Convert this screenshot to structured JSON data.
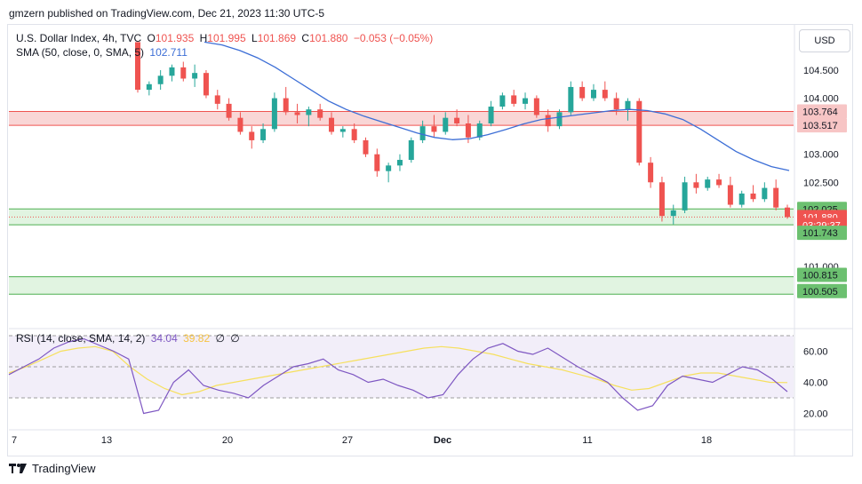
{
  "header": {
    "publisher": "gmzern published on TradingView.com, Dec 21, 2023 11:30 UTC-5"
  },
  "legend": {
    "symbol": "U.S. Dollar Index, 4h, TVC",
    "o_label": "O",
    "o": "101.935",
    "h_label": "H",
    "h": "101.995",
    "l_label": "L",
    "l": "101.869",
    "c_label": "C",
    "c": "101.880",
    "change": "−0.053 (−0.05%)",
    "sma_label": "SMA (50, close, 0, SMA, 5)",
    "sma_value": "102.711",
    "rsi_label": "RSI (14, close, SMA, 14, 2)",
    "rsi_value": "34.04",
    "rsi_sma_value": "39.82",
    "rsi_extra_1": "∅",
    "rsi_extra_2": "∅"
  },
  "currency": "USD",
  "price_axis": [
    "104.500",
    "104.000",
    "103.000",
    "102.500",
    "101.000"
  ],
  "price_tags": [
    {
      "label": "103.764",
      "price": 103.764,
      "kind": "red"
    },
    {
      "label": "103.517",
      "price": 103.517,
      "kind": "red"
    },
    {
      "label": "102.025",
      "price": 102.025,
      "kind": "green"
    },
    {
      "label": "101.880",
      "price": 101.88,
      "kind": "last"
    },
    {
      "label": "03:29:37",
      "price": 101.74,
      "kind": "timer"
    },
    {
      "label": "101.743",
      "price": 101.6,
      "kind": "green"
    },
    {
      "label": "100.815",
      "price": 100.85,
      "kind": "green"
    },
    {
      "label": "100.505",
      "price": 100.56,
      "kind": "green"
    }
  ],
  "rsi_axis": [
    "60.00",
    "40.00",
    "20.00"
  ],
  "time_axis": [
    "7",
    "13",
    "20",
    "27",
    "Dec",
    "11",
    "18"
  ],
  "footer": {
    "brand": "TradingView"
  },
  "colors": {
    "up": "#26a69a",
    "down": "#ef5350",
    "sma": "#3c6ed6",
    "rsi": "#7e57c2",
    "rsi_sma": "#f6e05e",
    "zone_red": "#f7c5c5",
    "zone_green": "#d4f0d4"
  },
  "chart_data": {
    "type": "candlestick",
    "title": "U.S. Dollar Index, 4h, TVC",
    "y_range": [
      100.35,
      105.0
    ],
    "zones": [
      {
        "from": 103.517,
        "to": 103.764,
        "kind": "resistance"
      },
      {
        "from": 101.743,
        "to": 102.025,
        "kind": "support"
      },
      {
        "from": 100.505,
        "to": 100.815,
        "kind": "support"
      }
    ],
    "candles": [
      [
        105.0,
        105.0,
        104.1,
        104.15
      ],
      [
        104.15,
        104.3,
        104.05,
        104.25
      ],
      [
        104.25,
        104.5,
        104.15,
        104.4
      ],
      [
        104.4,
        104.6,
        104.3,
        104.55
      ],
      [
        104.55,
        104.65,
        104.3,
        104.35
      ],
      [
        104.35,
        104.6,
        104.2,
        104.45
      ],
      [
        104.45,
        104.5,
        104.0,
        104.05
      ],
      [
        104.05,
        104.15,
        103.8,
        103.9
      ],
      [
        103.9,
        104.0,
        103.6,
        103.65
      ],
      [
        103.65,
        103.75,
        103.35,
        103.4
      ],
      [
        103.4,
        103.5,
        103.1,
        103.25
      ],
      [
        103.25,
        103.55,
        103.2,
        103.45
      ],
      [
        103.45,
        104.1,
        103.4,
        104.0
      ],
      [
        104.0,
        104.2,
        103.7,
        103.75
      ],
      [
        103.75,
        103.9,
        103.55,
        103.7
      ],
      [
        103.7,
        103.85,
        103.5,
        103.8
      ],
      [
        103.8,
        103.9,
        103.6,
        103.65
      ],
      [
        103.65,
        103.75,
        103.35,
        103.4
      ],
      [
        103.4,
        103.5,
        103.3,
        103.45
      ],
      [
        103.45,
        103.55,
        103.2,
        103.25
      ],
      [
        103.25,
        103.3,
        102.95,
        103.0
      ],
      [
        103.0,
        103.1,
        102.6,
        102.7
      ],
      [
        102.7,
        102.85,
        102.5,
        102.8
      ],
      [
        102.8,
        103.0,
        102.7,
        102.9
      ],
      [
        102.9,
        103.3,
        102.85,
        103.25
      ],
      [
        103.25,
        103.6,
        103.2,
        103.5
      ],
      [
        103.5,
        103.7,
        103.3,
        103.4
      ],
      [
        103.4,
        103.75,
        103.35,
        103.65
      ],
      [
        103.65,
        103.8,
        103.5,
        103.55
      ],
      [
        103.55,
        103.7,
        103.2,
        103.3
      ],
      [
        103.3,
        103.6,
        103.25,
        103.55
      ],
      [
        103.55,
        103.95,
        103.5,
        103.85
      ],
      [
        103.85,
        104.1,
        103.8,
        104.05
      ],
      [
        104.05,
        104.15,
        103.85,
        103.9
      ],
      [
        103.9,
        104.1,
        103.8,
        104.0
      ],
      [
        104.0,
        104.05,
        103.65,
        103.7
      ],
      [
        103.7,
        103.8,
        103.4,
        103.5
      ],
      [
        103.5,
        103.8,
        103.45,
        103.75
      ],
      [
        103.75,
        104.3,
        103.7,
        104.2
      ],
      [
        104.2,
        104.3,
        103.95,
        104.0
      ],
      [
        104.0,
        104.25,
        103.95,
        104.15
      ],
      [
        104.15,
        104.3,
        103.95,
        104.0
      ],
      [
        104.0,
        104.1,
        103.7,
        103.8
      ],
      [
        103.8,
        104.0,
        103.6,
        103.95
      ],
      [
        103.95,
        104.0,
        102.8,
        102.85
      ],
      [
        102.85,
        102.95,
        102.4,
        102.5
      ],
      [
        102.5,
        102.6,
        101.8,
        101.9
      ],
      [
        101.9,
        102.1,
        101.75,
        102.0
      ],
      [
        102.0,
        102.6,
        101.95,
        102.5
      ],
      [
        102.5,
        102.65,
        102.3,
        102.4
      ],
      [
        102.4,
        102.6,
        102.35,
        102.55
      ],
      [
        102.55,
        102.65,
        102.4,
        102.45
      ],
      [
        102.45,
        102.6,
        102.05,
        102.1
      ],
      [
        102.1,
        102.35,
        102.05,
        102.3
      ],
      [
        102.3,
        102.45,
        102.15,
        102.2
      ],
      [
        102.2,
        102.5,
        102.15,
        102.4
      ],
      [
        102.4,
        102.55,
        102.0,
        102.05
      ],
      [
        102.05,
        102.1,
        101.85,
        101.88
      ]
    ],
    "sma": [
      105.0,
      104.95,
      104.85,
      104.72,
      104.55,
      104.35,
      104.15,
      103.95,
      103.8,
      103.68,
      103.58,
      103.48,
      103.38,
      103.3,
      103.26,
      103.28,
      103.35,
      103.44,
      103.54,
      103.62,
      103.66,
      103.7,
      103.74,
      103.78,
      103.8,
      103.78,
      103.72,
      103.62,
      103.45,
      103.25,
      103.05,
      102.9,
      102.78,
      102.71
    ],
    "rsi": [
      45,
      50,
      55,
      62,
      66,
      68,
      64,
      60,
      55,
      20,
      22,
      40,
      48,
      38,
      35,
      33,
      30,
      38,
      44,
      50,
      52,
      55,
      48,
      45,
      40,
      42,
      38,
      35,
      30,
      32,
      45,
      55,
      62,
      65,
      60,
      58,
      62,
      56,
      50,
      45,
      40,
      30,
      22,
      25,
      38,
      44,
      42,
      40,
      45,
      50,
      48,
      42,
      34
    ],
    "rsi_sma": [
      46,
      50,
      55,
      60,
      62,
      63,
      60,
      50,
      42,
      36,
      32,
      34,
      38,
      40,
      42,
      44,
      46,
      48,
      50,
      52,
      54,
      56,
      58,
      60,
      62,
      63,
      62,
      60,
      58,
      55,
      52,
      50,
      48,
      45,
      42,
      38,
      35,
      36,
      40,
      44,
      46,
      46,
      44,
      42,
      40,
      39.82
    ]
  }
}
